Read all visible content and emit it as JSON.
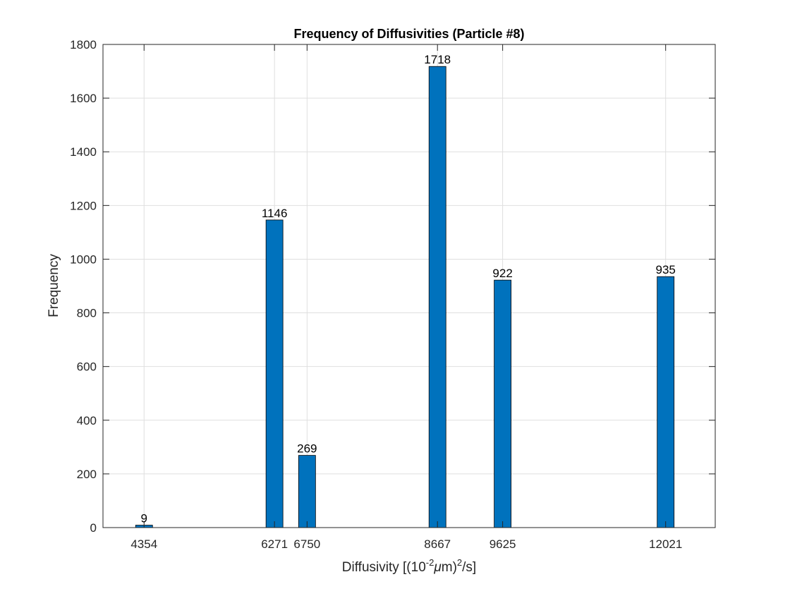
{
  "chart_data": {
    "type": "bar",
    "title": "Frequency of Diffusivities (Particle #8)",
    "xlabel": {
      "prefix": "Diffusivity [(10",
      "exponent": "-2",
      "mu": "μ",
      "middle": "m)",
      "exponent2": "2",
      "suffix": "/s]"
    },
    "ylabel": "Frequency",
    "x": [
      4354,
      6271,
      6750,
      8667,
      9625,
      12021
    ],
    "values": [
      9,
      1146,
      269,
      1718,
      922,
      935
    ],
    "x_tick_labels": [
      "4354",
      "6271",
      "6750",
      "8667",
      "9625",
      "12021"
    ],
    "y_ticks": [
      0,
      200,
      400,
      600,
      800,
      1000,
      1200,
      1400,
      1600,
      1800
    ],
    "xlim": [
      3750,
      12750
    ],
    "ylim": [
      0,
      1800
    ],
    "grid": true,
    "bar_color": "#0072BD",
    "bar_edge_color": "#000000"
  }
}
